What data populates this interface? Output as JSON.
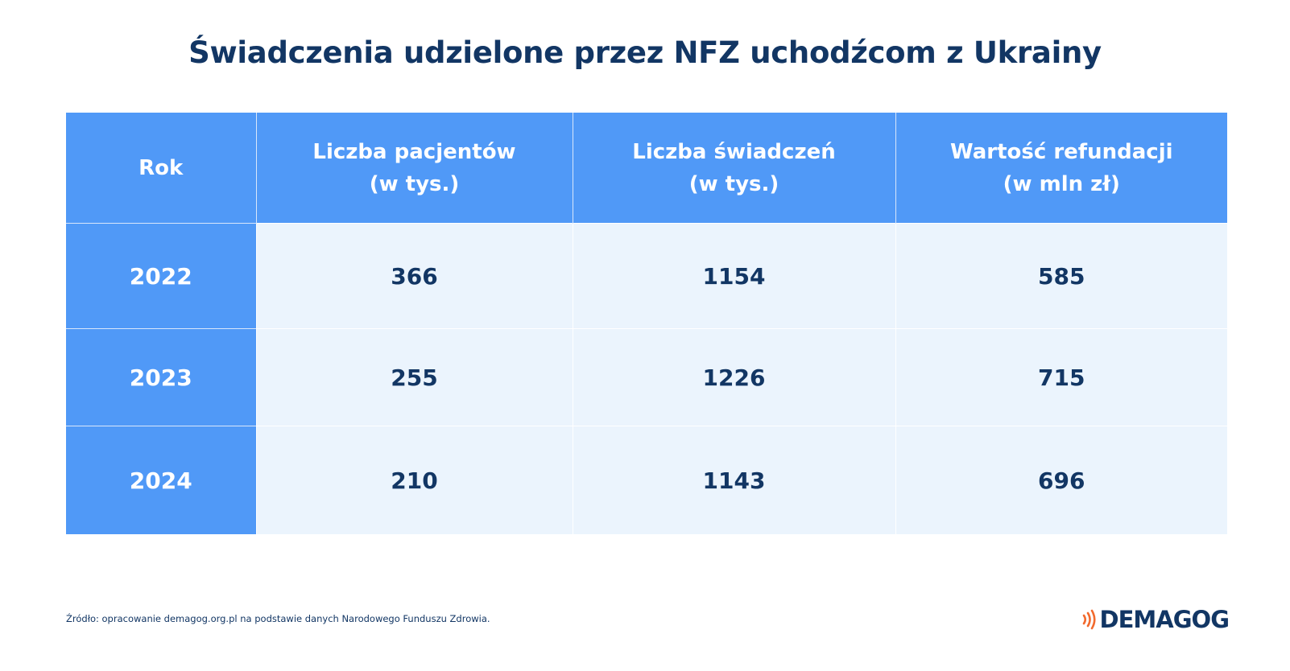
{
  "title": "Świadczenia udzielone przez NFZ uchodźcom z Ukrainy",
  "table": {
    "headers": [
      {
        "line1": "Rok",
        "line2": ""
      },
      {
        "line1": "Liczba pacjentów",
        "line2": "(w tys.)"
      },
      {
        "line1": "Liczba świadczeń",
        "line2": "(w tys.)"
      },
      {
        "line1": "Wartość refundacji",
        "line2": "(w mln zł)"
      }
    ],
    "rows": [
      {
        "year": "2022",
        "patients": "366",
        "services": "1154",
        "refund": "585"
      },
      {
        "year": "2023",
        "patients": "255",
        "services": "1226",
        "refund": "715"
      },
      {
        "year": "2024",
        "patients": "210",
        "services": "1143",
        "refund": "696"
      }
    ]
  },
  "chart_data": {
    "type": "table",
    "title": "Świadczenia udzielone przez NFZ uchodźcom z Ukrainy",
    "columns": [
      "Rok",
      "Liczba pacjentów (w tys.)",
      "Liczba świadczeń (w tys.)",
      "Wartość refundacji (w mln zł)"
    ],
    "rows": [
      [
        "2022",
        366,
        1154,
        585
      ],
      [
        "2023",
        255,
        1226,
        715
      ],
      [
        "2024",
        210,
        1143,
        696
      ]
    ]
  },
  "source": "Źródło: opracowanie demagog.org.pl na podstawie danych Narodowego Funduszu Zdrowia.",
  "logo": {
    "text": "DEMAGOG",
    "icon": "sound-waves-icon",
    "accent_color": "#f26a2e"
  },
  "colors": {
    "title": "#123664",
    "header_bg": "#5099f7",
    "cell_bg": "#ebf4fd",
    "cell_text": "#123664"
  }
}
